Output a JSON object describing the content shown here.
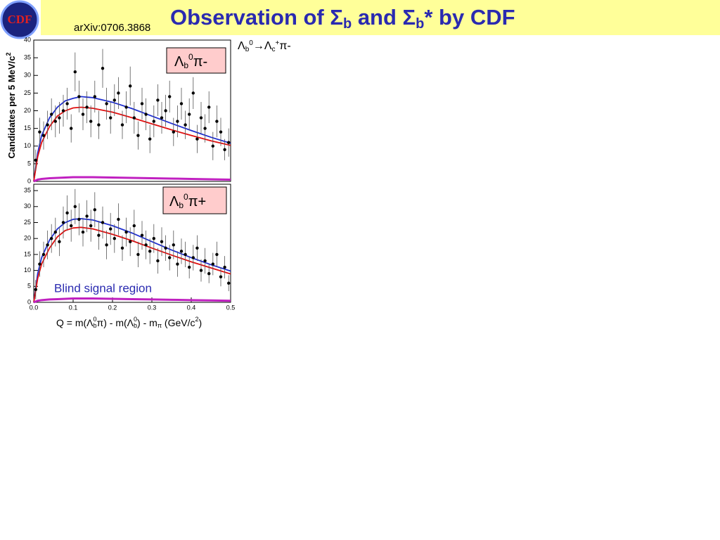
{
  "header": {
    "logo": "CDF",
    "arxiv": "arXiv:0706.3868",
    "title_parts": [
      "Observation of Σ",
      "b",
      " and Σ",
      "b",
      "* by CDF"
    ]
  },
  "decay_parts": [
    "Λ",
    "b",
    "0",
    "→Λ",
    "c",
    "+",
    "π-"
  ],
  "chart_data": [
    {
      "type": "errorbar",
      "panel_parts": [
        "Λ",
        "b",
        "0",
        "π-"
      ],
      "y_label_parts": [
        "Candidates per 5 MeV/c",
        "2"
      ],
      "xlim": [
        0,
        0.5
      ],
      "ylim": [
        0,
        40
      ],
      "yticks": [
        0,
        5,
        10,
        15,
        20,
        25,
        30,
        35,
        40
      ],
      "x": [
        0.005,
        0.015,
        0.025,
        0.035,
        0.045,
        0.055,
        0.065,
        0.075,
        0.085,
        0.095,
        0.105,
        0.115,
        0.125,
        0.135,
        0.145,
        0.155,
        0.165,
        0.175,
        0.185,
        0.195,
        0.205,
        0.215,
        0.225,
        0.235,
        0.245,
        0.255,
        0.265,
        0.275,
        0.285,
        0.295,
        0.305,
        0.315,
        0.325,
        0.335,
        0.345,
        0.355,
        0.365,
        0.375,
        0.385,
        0.395,
        0.405,
        0.415,
        0.425,
        0.435,
        0.445,
        0.455,
        0.465,
        0.475,
        0.485,
        0.495
      ],
      "values": [
        6,
        14,
        13,
        16,
        19,
        17,
        18,
        20,
        22,
        15,
        31,
        24,
        19,
        21,
        17,
        24,
        16,
        32,
        22,
        18,
        23,
        25,
        16,
        21,
        27,
        18,
        13,
        22,
        19,
        12,
        17,
        23,
        18,
        20,
        24,
        14,
        17,
        22,
        16,
        19,
        25,
        12,
        18,
        15,
        21,
        10,
        17,
        14,
        9,
        11
      ],
      "errors": [
        3,
        4,
        4,
        4,
        4.5,
        4.5,
        4.5,
        4.5,
        4.5,
        4,
        5.5,
        4.5,
        4.5,
        4.5,
        4.5,
        4.5,
        4,
        5.5,
        4.5,
        4.5,
        4.5,
        4.5,
        4,
        4.5,
        5.5,
        4.5,
        4,
        4.5,
        4.5,
        4,
        4.5,
        4.5,
        4.5,
        4.5,
        4.5,
        4,
        4.5,
        4.5,
        4,
        4.5,
        4.5,
        4,
        4.5,
        4,
        4.5,
        4,
        4.5,
        4,
        3,
        4
      ],
      "color": "#000000",
      "curves": {
        "x": [
          0,
          0.01,
          0.02,
          0.04,
          0.06,
          0.08,
          0.1,
          0.12,
          0.15,
          0.2,
          0.25,
          0.3,
          0.35,
          0.4,
          0.45,
          0.5
        ],
        "series": [
          {
            "color": "#1f2fd0",
            "values": [
              0,
              8,
              13,
              18,
              21,
              22.8,
              23.5,
              24,
              23.7,
              22.4,
              20.6,
              18.5,
              16.4,
              14.4,
              12.5,
              10.8
            ]
          },
          {
            "color": "#e01010",
            "values": [
              0,
              7,
              11,
              15.5,
              18.5,
              20,
              20.8,
              21,
              20.7,
              19.6,
              18,
              16.3,
              14.6,
              13,
              11.5,
              10.2
            ]
          },
          {
            "color": "#c020c0",
            "values": [
              0,
              0.5,
              0.7,
              0.9,
              1,
              1.1,
              1.2,
              1.2,
              1.2,
              1.1,
              1,
              0.9,
              0.8,
              0.7,
              0.6,
              0.5
            ]
          }
        ]
      }
    },
    {
      "type": "errorbar",
      "panel_parts": [
        "Λ",
        "b",
        "0",
        "π+"
      ],
      "annotation": "Blind signal region",
      "x_label_parts": [
        "Q = m(Λ",
        "b",
        "0",
        "π) - m(Λ",
        "b",
        "0",
        ") - m",
        "π",
        "   (GeV/c",
        "2",
        ")"
      ],
      "xlim": [
        0,
        0.5
      ],
      "xticks": [
        {
          "value": 0,
          "label": "0.0"
        },
        0.1,
        0.2,
        0.3,
        0.4,
        0.5
      ],
      "ylim": [
        0,
        37
      ],
      "yticks": [
        0,
        5,
        10,
        15,
        20,
        25,
        30,
        35
      ],
      "x": [
        0.005,
        0.015,
        0.025,
        0.035,
        0.045,
        0.055,
        0.065,
        0.075,
        0.085,
        0.095,
        0.105,
        0.115,
        0.125,
        0.135,
        0.145,
        0.155,
        0.165,
        0.175,
        0.185,
        0.195,
        0.205,
        0.215,
        0.225,
        0.235,
        0.245,
        0.255,
        0.265,
        0.275,
        0.285,
        0.295,
        0.305,
        0.315,
        0.325,
        0.335,
        0.345,
        0.355,
        0.365,
        0.375,
        0.385,
        0.395,
        0.405,
        0.415,
        0.425,
        0.435,
        0.445,
        0.455,
        0.465,
        0.475,
        0.485,
        0.495
      ],
      "values": [
        4,
        12,
        15,
        18,
        20,
        22,
        19,
        25,
        28,
        24,
        30,
        26,
        22,
        27,
        24,
        29,
        21,
        25,
        18,
        23,
        20,
        26,
        17,
        22,
        19,
        24,
        15,
        21,
        18,
        16,
        20,
        13,
        19,
        17,
        14,
        18,
        12,
        16,
        15,
        11,
        14,
        17,
        10,
        13,
        9,
        12,
        15,
        8,
        11,
        6
      ],
      "errors": [
        3,
        4,
        4,
        4.5,
        4.5,
        4.5,
        4.5,
        5,
        5.5,
        5,
        5.5,
        5,
        4.5,
        5,
        5,
        5.5,
        4.5,
        5,
        4.5,
        5,
        4.5,
        5,
        4,
        4.5,
        4.5,
        5,
        4,
        4.5,
        4.5,
        4,
        4.5,
        4,
        4.5,
        4,
        4,
        4.5,
        4,
        4,
        4,
        3.5,
        4,
        4,
        3.5,
        4,
        3,
        3.5,
        4,
        3,
        3.5,
        2.5
      ],
      "color": "#000000",
      "curves": {
        "x": [
          0,
          0.01,
          0.02,
          0.04,
          0.06,
          0.08,
          0.1,
          0.12,
          0.15,
          0.2,
          0.25,
          0.3,
          0.35,
          0.4,
          0.45,
          0.5
        ],
        "series": [
          {
            "color": "#1f2fd0",
            "values": [
              0,
              9,
              14,
              19.5,
              23,
              25,
              26,
              26.2,
              25.8,
              24,
              21.7,
              19,
              16.4,
              14,
              11.8,
              9.8
            ]
          },
          {
            "color": "#e01010",
            "values": [
              0,
              7.5,
              12,
              17,
              20.5,
              22.5,
              23.3,
              23.5,
              23,
              21.3,
              19.3,
              17,
              14.8,
              12.7,
              10.8,
              8.9
            ]
          },
          {
            "color": "#c020c0",
            "values": [
              0,
              0.5,
              0.7,
              0.9,
              1,
              1.1,
              1.2,
              1.2,
              1.2,
              1.1,
              1,
              0.9,
              0.8,
              0.7,
              0.6,
              0.5
            ]
          }
        ]
      }
    }
  ]
}
